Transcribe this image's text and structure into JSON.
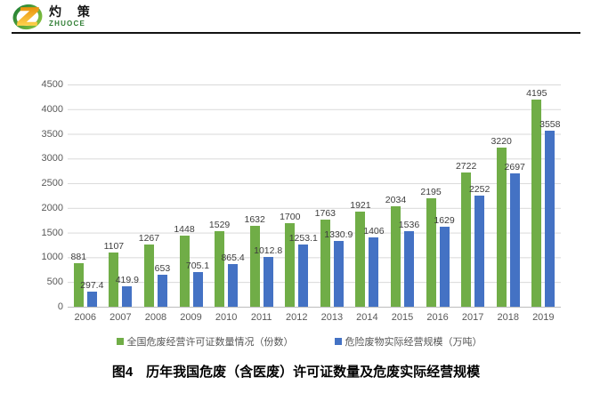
{
  "logo": {
    "title": "灼 策",
    "subtitle": "ZHUOCE"
  },
  "chart_data": {
    "type": "bar",
    "title": "",
    "categories": [
      "2006",
      "2007",
      "2008",
      "2009",
      "2010",
      "2011",
      "2012",
      "2013",
      "2014",
      "2015",
      "2016",
      "2017",
      "2018",
      "2019"
    ],
    "series": [
      {
        "name": "全国危废经营许可证数量情况（份数）",
        "color": "#70AD47",
        "values": [
          881,
          1107,
          1267,
          1448,
          1529,
          1632,
          1700,
          1763,
          1921,
          2034,
          2195,
          2722,
          3220,
          4195
        ]
      },
      {
        "name": "危险废物实际经营规模（万吨）",
        "color": "#4472C4",
        "values": [
          297.4,
          419.9,
          653,
          705.1,
          865.4,
          1012.8,
          1253.1,
          1330.9,
          1406,
          1536,
          1629,
          2252,
          2697,
          3558
        ]
      }
    ],
    "xlabel": "",
    "ylabel": "",
    "ylim": [
      0,
      4500
    ],
    "ytick_step": 500,
    "grid": true,
    "legend_position": "bottom",
    "data_labels": true
  },
  "caption": {
    "text": "图4　历年我国危废（含医废）许可证数量及危废实际经营规模"
  },
  "colors": {
    "grid_line": "#d9d9d9",
    "axis_line": "#bfbfbf",
    "axis_text": "#595959",
    "data_label_text": "#3d3d3d",
    "caption_text": "#000000",
    "divider": "#121212",
    "logo_green": "#2e8b2e",
    "logo_orange": "#f5a50a"
  }
}
